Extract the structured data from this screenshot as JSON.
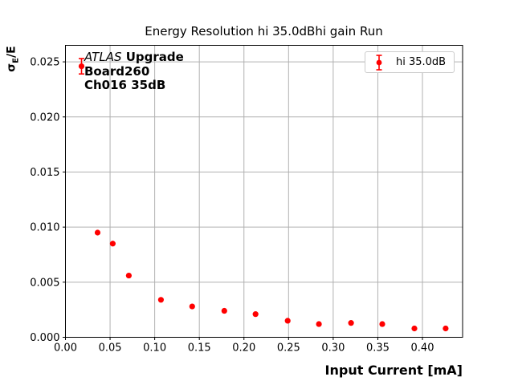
{
  "chart_data": {
    "type": "scatter",
    "title": "Energy Resolution hi 35.0dBhi gain Run",
    "xlabel": "Input Current [mA]",
    "ylabel": "σ_E/E",
    "ylabel_parts": {
      "sigma": "σ",
      "sub": "E",
      "rest": "/E"
    },
    "xlim": [
      0.0,
      0.445
    ],
    "ylim": [
      0.0,
      0.0265
    ],
    "grid": true,
    "xticks": {
      "values": [
        0.0,
        0.05,
        0.1,
        0.15,
        0.2,
        0.25,
        0.3,
        0.35,
        0.4
      ],
      "labels": [
        "0.00",
        "0.05",
        "0.10",
        "0.15",
        "0.20",
        "0.25",
        "0.30",
        "0.35",
        "0.40"
      ]
    },
    "yticks": {
      "values": [
        0.0,
        0.005,
        0.01,
        0.015,
        0.02,
        0.025
      ],
      "labels": [
        "0.000",
        "0.005",
        "0.010",
        "0.015",
        "0.020",
        "0.025"
      ]
    },
    "legend": {
      "label": "hi 35.0dB",
      "position": "upper right"
    },
    "annotation": {
      "atlas": "ATLAS",
      "upgrade": "Upgrade",
      "line2": "Board260",
      "line3": "Ch016 35dB"
    },
    "series": [
      {
        "name": "hi 35.0dB",
        "color": "#ff0000",
        "marker": "o",
        "x": [
          0.018,
          0.036,
          0.053,
          0.071,
          0.107,
          0.142,
          0.178,
          0.213,
          0.249,
          0.284,
          0.32,
          0.355,
          0.391,
          0.426
        ],
        "y": [
          0.0246,
          0.0095,
          0.0085,
          0.0056,
          0.0034,
          0.0028,
          0.0024,
          0.0021,
          0.0015,
          0.0012,
          0.0013,
          0.0012,
          0.0008,
          0.0008
        ],
        "yerr": [
          0.0007,
          0,
          0,
          0,
          0,
          0,
          0,
          0,
          0,
          0,
          0,
          0,
          0,
          0
        ]
      }
    ],
    "colors": {
      "series": "#ff0000",
      "grid": "#b0b0b0",
      "spine": "#000000",
      "text": "#000000",
      "legend_border": "#cccccc",
      "background": "#ffffff"
    }
  }
}
